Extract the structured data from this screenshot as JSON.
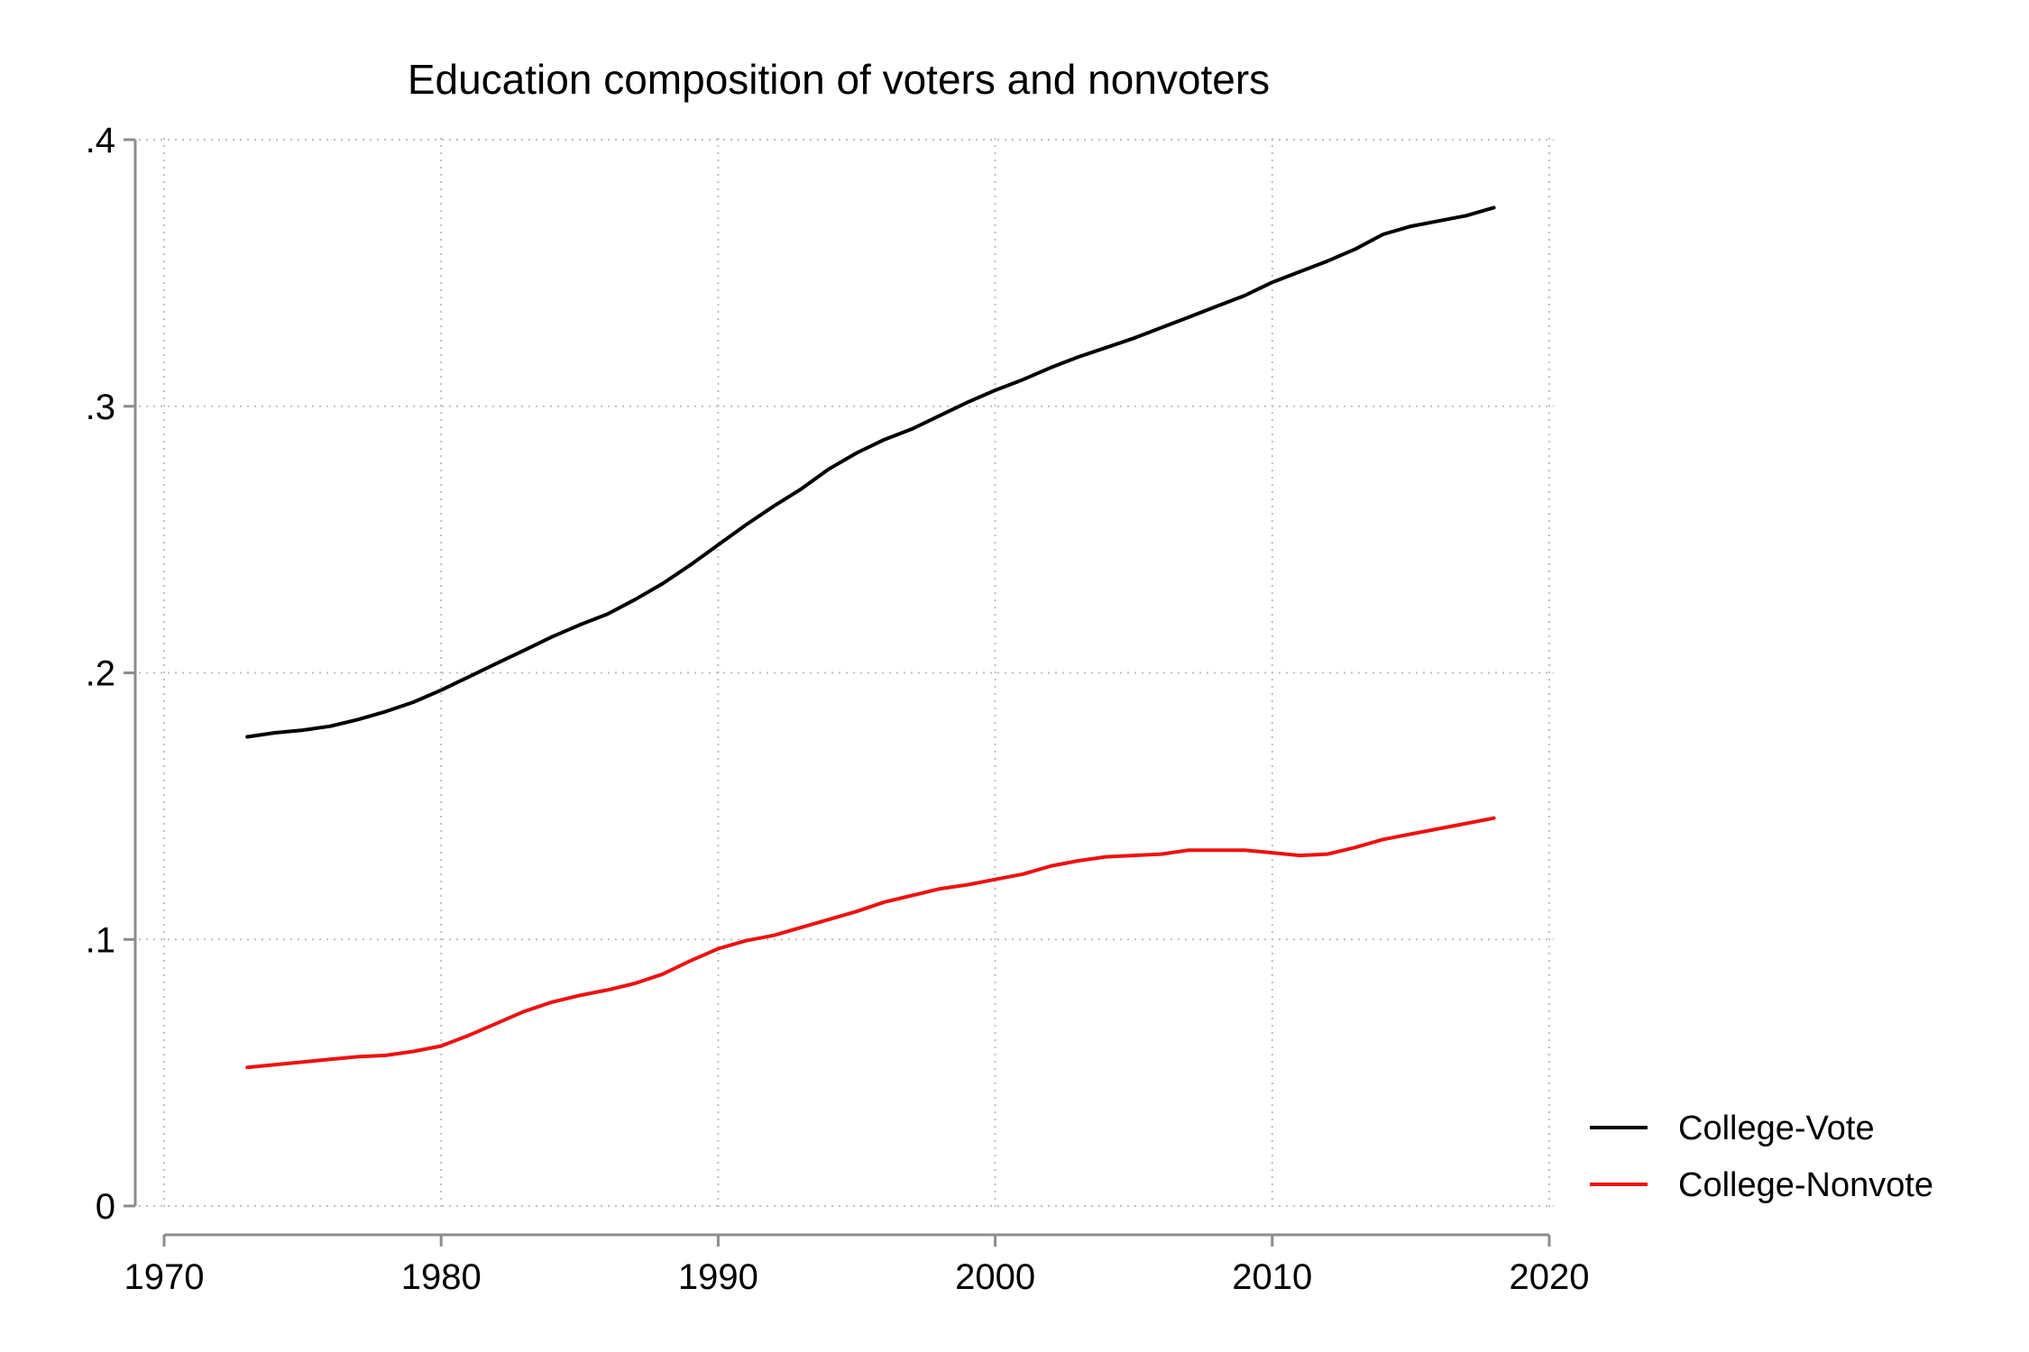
{
  "chart_data": {
    "type": "line",
    "title": "Education composition of voters and nonvoters",
    "xlabel": "",
    "ylabel": "",
    "xlim": [
      1970,
      2020
    ],
    "ylim": [
      0,
      0.4
    ],
    "x_ticks": [
      1970,
      1980,
      1990,
      2000,
      2010,
      2020
    ],
    "x_tick_labels": [
      "1970",
      "1980",
      "1990",
      "2000",
      "2010",
      "2020"
    ],
    "y_ticks": [
      0,
      0.1,
      0.2,
      0.3,
      0.4
    ],
    "y_tick_labels": [
      "0",
      ".1",
      ".2",
      ".3",
      ".4"
    ],
    "grid": true,
    "legend_position": "bottom-right",
    "series": [
      {
        "name": "College-Vote",
        "color": "#000000",
        "x": [
          1973,
          1974,
          1975,
          1976,
          1977,
          1978,
          1979,
          1980,
          1981,
          1982,
          1983,
          1984,
          1985,
          1986,
          1987,
          1988,
          1989,
          1990,
          1991,
          1992,
          1993,
          1994,
          1995,
          1996,
          1997,
          1998,
          1999,
          2000,
          2001,
          2002,
          2003,
          2004,
          2005,
          2006,
          2007,
          2008,
          2009,
          2010,
          2011,
          2012,
          2013,
          2014,
          2015,
          2016,
          2017,
          2018
        ],
        "values": [
          0.176,
          0.1775,
          0.1785,
          0.18,
          0.1825,
          0.1855,
          0.189,
          0.1935,
          0.1985,
          0.2035,
          0.2085,
          0.2135,
          0.218,
          0.222,
          0.2275,
          0.2335,
          0.2405,
          0.248,
          0.2555,
          0.2625,
          0.269,
          0.2765,
          0.2825,
          0.2875,
          0.2915,
          0.2965,
          0.3015,
          0.306,
          0.31,
          0.3145,
          0.3185,
          0.322,
          0.3255,
          0.3295,
          0.3335,
          0.3375,
          0.3415,
          0.3465,
          0.3505,
          0.3545,
          0.359,
          0.3645,
          0.3675,
          0.3695,
          0.3715,
          0.3745
        ]
      },
      {
        "name": "College-Nonvote",
        "color": "#ee1111",
        "x": [
          1973,
          1974,
          1975,
          1976,
          1977,
          1978,
          1979,
          1980,
          1981,
          1982,
          1983,
          1984,
          1985,
          1986,
          1987,
          1988,
          1989,
          1990,
          1991,
          1992,
          1993,
          1994,
          1995,
          1996,
          1997,
          1998,
          1999,
          2000,
          2001,
          2002,
          2003,
          2004,
          2005,
          2006,
          2007,
          2008,
          2009,
          2010,
          2011,
          2012,
          2013,
          2014,
          2015,
          2016,
          2017,
          2018
        ],
        "values": [
          0.052,
          0.053,
          0.054,
          0.055,
          0.056,
          0.0565,
          0.058,
          0.06,
          0.064,
          0.0685,
          0.073,
          0.0765,
          0.079,
          0.081,
          0.0835,
          0.087,
          0.092,
          0.0965,
          0.0995,
          0.1015,
          0.1045,
          0.1075,
          0.1105,
          0.114,
          0.1165,
          0.119,
          0.1205,
          0.1225,
          0.1245,
          0.1275,
          0.1295,
          0.131,
          0.1315,
          0.132,
          0.1335,
          0.1335,
          0.1335,
          0.1325,
          0.1315,
          0.132,
          0.1345,
          0.1375,
          0.1395,
          0.1415,
          0.1435,
          0.1455
        ]
      }
    ]
  }
}
